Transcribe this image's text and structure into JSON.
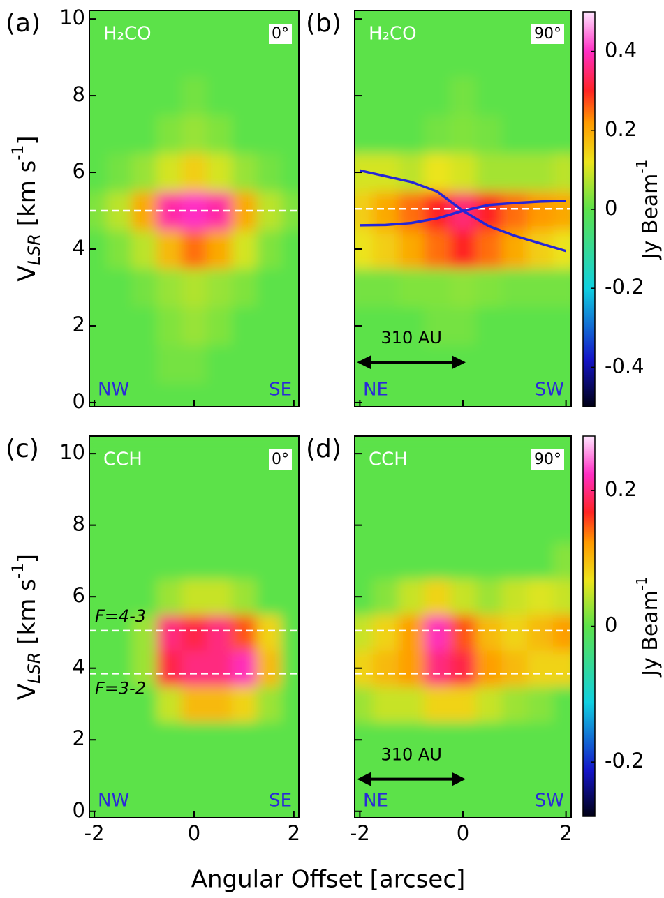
{
  "x_label": "Angular Offset [arcsec]",
  "y_label": {
    "main": "V",
    "subscript": "LSR",
    "unit": " [km s",
    "superscript": "-1",
    "end": "]"
  },
  "chart_data": [
    {
      "type": "heatmap",
      "panel_label": "(a)",
      "molecule": "H₂CO",
      "angle": "0°",
      "left_direction": "NW",
      "right_direction": "SE",
      "xlim": [
        -2.1,
        2.1
      ],
      "ylim": [
        -0.11,
        10.22
      ],
      "xticks": [
        -2,
        0,
        2
      ],
      "yticks": [
        0,
        2,
        4,
        6,
        8,
        10
      ],
      "show_x_tick_labels": false,
      "show_y_tick_labels": true,
      "zlim": [
        -0.5,
        0.5
      ],
      "x": [
        -2,
        -1.5,
        -1,
        -0.5,
        0,
        0.5,
        1,
        1.5,
        2
      ],
      "y": [
        0,
        1,
        2,
        3,
        4,
        5,
        6,
        7,
        8,
        9,
        10
      ],
      "z": [
        [
          0,
          0,
          0,
          0,
          0,
          0,
          0,
          0,
          0
        ],
        [
          0,
          0,
          0,
          0.02,
          0.02,
          0,
          0,
          0,
          0
        ],
        [
          0,
          0,
          0,
          0.03,
          0.05,
          0.03,
          0,
          0,
          0
        ],
        [
          0,
          0,
          0.02,
          0.05,
          0.07,
          0.05,
          0.03,
          0,
          0
        ],
        [
          0,
          0.03,
          0.08,
          0.18,
          0.25,
          0.2,
          0.1,
          0.03,
          0
        ],
        [
          0.03,
          0.08,
          0.2,
          0.38,
          0.4,
          0.38,
          0.2,
          0.08,
          0.03
        ],
        [
          0,
          0.02,
          0.05,
          0.1,
          0.15,
          0.1,
          0.05,
          0.02,
          0
        ],
        [
          0,
          0,
          0,
          0.03,
          0.05,
          0.03,
          0,
          0,
          0
        ],
        [
          0,
          0,
          0,
          0,
          0.02,
          0,
          0,
          0,
          0
        ],
        [
          0,
          0,
          0,
          0,
          0,
          0,
          0,
          0,
          0
        ],
        [
          0,
          0,
          0,
          0,
          0,
          0,
          0,
          0,
          0
        ]
      ],
      "reference_lines": [
        5.0
      ]
    },
    {
      "type": "heatmap",
      "panel_label": "(b)",
      "molecule": "H₂CO",
      "angle": "90°",
      "left_direction": "NE",
      "right_direction": "SW",
      "xlim": [
        -2.1,
        2.1
      ],
      "ylim": [
        -0.11,
        10.22
      ],
      "xticks": [
        -2,
        0,
        2
      ],
      "yticks": [
        0,
        2,
        4,
        6,
        8,
        10
      ],
      "show_x_tick_labels": false,
      "show_y_tick_labels": false,
      "zlim": [
        -0.5,
        0.5
      ],
      "zticks": [
        -0.4,
        -0.2,
        0,
        0.2,
        0.4
      ],
      "colorbar_label": {
        "main": "Jy Beam",
        "superscript": "-1"
      },
      "x": [
        -2,
        -1.5,
        -1,
        -0.5,
        0,
        0.5,
        1,
        1.5,
        2
      ],
      "y": [
        0,
        1,
        2,
        3,
        4,
        5,
        6,
        7,
        8,
        9,
        10
      ],
      "z": [
        [
          0,
          0,
          0,
          0,
          0,
          0,
          0,
          0,
          0
        ],
        [
          0,
          0,
          0,
          0,
          0,
          0,
          0,
          0,
          0
        ],
        [
          0,
          0,
          0,
          0.02,
          0.02,
          0,
          0,
          0,
          0
        ],
        [
          0.02,
          0.02,
          0.03,
          0.03,
          0.04,
          0.03,
          0.02,
          0.02,
          0.02
        ],
        [
          0.12,
          0.15,
          0.2,
          0.25,
          0.3,
          0.25,
          0.2,
          0.15,
          0.12
        ],
        [
          0.15,
          0.2,
          0.25,
          0.3,
          0.35,
          0.3,
          0.25,
          0.22,
          0.2
        ],
        [
          0.1,
          0.1,
          0.08,
          0.12,
          0.1,
          0.06,
          0.06,
          0.06,
          0.08
        ],
        [
          0,
          0,
          0,
          0.02,
          0.03,
          0.02,
          0,
          0,
          0
        ],
        [
          0,
          0,
          0,
          0,
          0.02,
          0,
          0,
          0,
          0
        ],
        [
          0,
          0,
          0,
          0,
          0,
          0,
          0,
          0,
          0
        ],
        [
          0,
          0,
          0,
          0,
          0,
          0,
          0,
          0,
          0
        ]
      ],
      "reference_lines": [
        5.05
      ],
      "model_curves": [
        {
          "color": "#2626d6",
          "x": [
            -2,
            -1.5,
            -1,
            -0.5,
            0,
            0.5,
            1,
            1.5,
            2
          ],
          "y": [
            6.05,
            5.9,
            5.75,
            5.5,
            5.0,
            4.6,
            4.35,
            4.15,
            3.95
          ]
        },
        {
          "color": "#2626d6",
          "x": [
            -2,
            -1.5,
            -1,
            -0.5,
            0,
            0.5,
            1,
            1.5,
            2
          ],
          "y": [
            4.62,
            4.63,
            4.68,
            4.8,
            5.0,
            5.15,
            5.2,
            5.24,
            5.26
          ]
        }
      ],
      "scale_bar": {
        "label": "310 AU",
        "x": [
          -2,
          0
        ],
        "y": 1.05
      }
    },
    {
      "type": "heatmap",
      "panel_label": "(c)",
      "molecule": "CCH",
      "angle": "0°",
      "left_direction": "NW",
      "right_direction": "SE",
      "xlim": [
        -2.1,
        2.1
      ],
      "ylim": [
        -0.18,
        10.49
      ],
      "xticks": [
        -2,
        0,
        2
      ],
      "yticks": [
        0,
        2,
        4,
        6,
        8,
        10
      ],
      "show_x_tick_labels": true,
      "show_y_tick_labels": true,
      "zlim": [
        -0.28,
        0.28
      ],
      "x": [
        -2,
        -1.5,
        -1,
        -0.5,
        0,
        0.5,
        1,
        1.5,
        2
      ],
      "y": [
        0,
        1,
        2,
        3,
        4,
        5,
        6,
        7,
        8,
        9,
        10
      ],
      "z": [
        [
          0,
          0,
          0,
          0,
          0,
          0,
          0,
          0,
          0
        ],
        [
          0,
          0,
          0,
          0,
          0,
          0,
          0,
          0,
          0
        ],
        [
          0,
          0,
          0,
          0,
          0,
          0,
          0,
          0,
          0
        ],
        [
          0,
          0,
          0,
          0.05,
          0.1,
          0.1,
          0.08,
          0.03,
          0
        ],
        [
          0,
          0,
          0.03,
          0.18,
          0.2,
          0.2,
          0.22,
          0.1,
          0
        ],
        [
          0,
          0,
          0.03,
          0.2,
          0.18,
          0.2,
          0.15,
          0.08,
          0
        ],
        [
          0,
          0,
          0,
          0.03,
          0.05,
          0.05,
          0.03,
          0,
          0
        ],
        [
          0,
          0,
          0,
          0,
          0,
          0,
          0,
          0,
          0
        ],
        [
          0,
          0,
          0,
          0,
          0,
          0,
          0,
          0,
          0
        ],
        [
          0,
          0,
          0,
          0,
          0,
          0,
          0,
          0,
          0
        ],
        [
          0,
          0,
          0,
          0,
          0,
          0,
          0,
          0,
          0
        ]
      ],
      "reference_lines": [
        {
          "value": 5.05,
          "label": "F=4-3"
        },
        {
          "value": 3.85,
          "label": "F=3-2"
        }
      ]
    },
    {
      "type": "heatmap",
      "panel_label": "(d)",
      "molecule": "CCH",
      "angle": "90°",
      "left_direction": "NE",
      "right_direction": "SW",
      "xlim": [
        -2.1,
        2.1
      ],
      "ylim": [
        -0.18,
        10.49
      ],
      "xticks": [
        -2,
        0,
        2
      ],
      "yticks": [
        0,
        2,
        4,
        6,
        8,
        10
      ],
      "show_x_tick_labels": true,
      "show_y_tick_labels": false,
      "zlim": [
        -0.28,
        0.28
      ],
      "zticks": [
        -0.2,
        0,
        0.2
      ],
      "colorbar_label": {
        "main": "Jy Beam",
        "superscript": "-1"
      },
      "x": [
        -2,
        -1.5,
        -1,
        -0.5,
        0,
        0.5,
        1,
        1.5,
        2
      ],
      "y": [
        0,
        1,
        2,
        3,
        4,
        5,
        6,
        7,
        8,
        9,
        10
      ],
      "z": [
        [
          0,
          0,
          0,
          0,
          0,
          0,
          0,
          0,
          0
        ],
        [
          0,
          0,
          0,
          0,
          0,
          0,
          0,
          0,
          0
        ],
        [
          0,
          0,
          0,
          0,
          0,
          0,
          0,
          0,
          0
        ],
        [
          0.03,
          0.05,
          0.05,
          0.08,
          0.08,
          0.05,
          0.03,
          0.02,
          0
        ],
        [
          0.08,
          0.1,
          0.12,
          0.2,
          0.18,
          0.12,
          0.1,
          0.08,
          0.08
        ],
        [
          0.05,
          0.08,
          0.12,
          0.22,
          0.15,
          0.1,
          0.08,
          0.1,
          0.12
        ],
        [
          0,
          0.02,
          0.05,
          0.08,
          0.05,
          0.03,
          0.05,
          0.06,
          0.05
        ],
        [
          0,
          0,
          0,
          0,
          0,
          0,
          0,
          0,
          0.02
        ],
        [
          0,
          0,
          0,
          0,
          0,
          0,
          0,
          0,
          0
        ],
        [
          0,
          0,
          0,
          0,
          0,
          0,
          0,
          0,
          0
        ],
        [
          0,
          0,
          0,
          0,
          0,
          0,
          0,
          0,
          0
        ]
      ],
      "reference_lines": [
        5.05,
        3.85
      ],
      "scale_bar": {
        "label": "310 AU",
        "x": [
          -2,
          0
        ],
        "y": 0.9
      }
    }
  ]
}
